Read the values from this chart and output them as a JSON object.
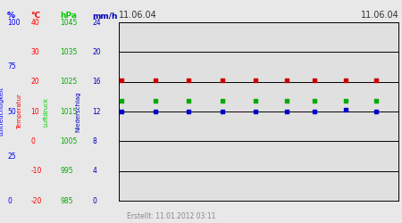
{
  "title_left": "11.06.04",
  "title_right": "11.06.04",
  "footer": "Erstellt: 11.01.2012 03:11",
  "bg_color": "#e8e8e8",
  "plot_area_color": "#e0e0e0",
  "grid_line_color": "#000000",
  "col_headers": [
    "%",
    "°C",
    "hPa",
    "mm/h"
  ],
  "col_header_colors": [
    "#0000ff",
    "#ff0000",
    "#00cc00",
    "#0000bb"
  ],
  "side_labels": [
    "Luftfeuchtigkeit",
    "Temperatur",
    "Luftdruck",
    "Niederschlag"
  ],
  "side_label_colors": [
    "#0000ff",
    "#ff0000",
    "#00cc00",
    "#0000bb"
  ],
  "blue_tick_labels": [
    "0",
    "25",
    "50",
    "75",
    "100"
  ],
  "blue_tick_data_y": [
    0,
    6,
    12,
    18,
    24
  ],
  "red_tick_labels": [
    "-20",
    "-10",
    "0",
    "10",
    "20",
    "30",
    "40"
  ],
  "red_tick_data_y": [
    0,
    4,
    8,
    12,
    16,
    20,
    24
  ],
  "green_tick_labels": [
    "985",
    "995",
    "1005",
    "1015",
    "1025",
    "1035",
    "1045"
  ],
  "green_tick_data_y": [
    0,
    4,
    8,
    12,
    16,
    20,
    24
  ],
  "darkblue_tick_labels": [
    "0",
    "4",
    "8",
    "12",
    "16",
    "20",
    "24"
  ],
  "darkblue_tick_data_y": [
    0,
    4,
    8,
    12,
    16,
    20,
    24
  ],
  "red_x": [
    0.01,
    0.13,
    0.25,
    0.37,
    0.49,
    0.6,
    0.7,
    0.81,
    0.92
  ],
  "red_y": [
    16.2,
    16.2,
    16.2,
    16.2,
    16.2,
    16.2,
    16.2,
    16.2,
    16.2
  ],
  "green_x": [
    0.01,
    0.13,
    0.25,
    0.37,
    0.49,
    0.6,
    0.7,
    0.81,
    0.92
  ],
  "green_y": [
    13.5,
    13.5,
    13.5,
    13.5,
    13.5,
    13.5,
    13.5,
    13.5,
    13.5
  ],
  "blue_x": [
    0.01,
    0.13,
    0.25,
    0.37,
    0.49,
    0.6,
    0.7,
    0.81,
    0.92
  ],
  "blue_y": [
    12.0,
    12.0,
    12.0,
    12.0,
    12.0,
    12.0,
    12.0,
    12.3,
    12.0
  ],
  "ylim": [
    0,
    24
  ],
  "xlim": [
    0,
    1
  ],
  "horizontal_lines": [
    0,
    4,
    8,
    12,
    16,
    20,
    24
  ],
  "marker_size": 12
}
